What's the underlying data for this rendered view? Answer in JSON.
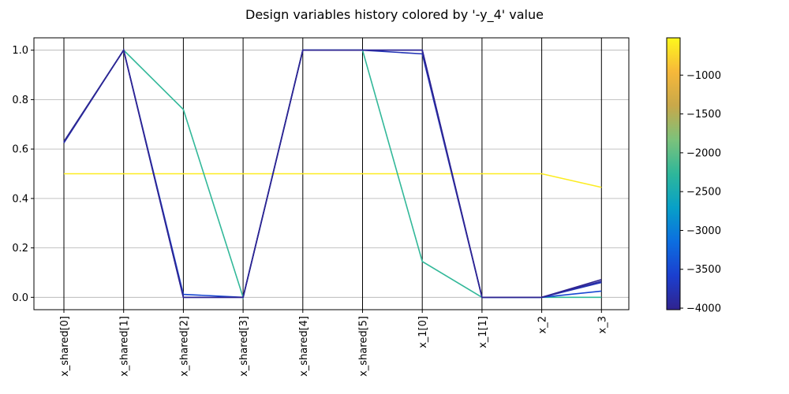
{
  "chart_data": {
    "type": "line",
    "title": "Design variables history colored by '-y_4' value",
    "categories": [
      "x_shared[0]",
      "x_shared[1]",
      "x_shared[2]",
      "x_shared[3]",
      "x_shared[4]",
      "x_shared[5]",
      "x_1[0]",
      "x_1[1]",
      "x_2",
      "x_3"
    ],
    "ylim": [
      -0.05,
      1.05
    ],
    "yticks": [
      0.0,
      0.2,
      0.4,
      0.6,
      0.8,
      1.0
    ],
    "ytick_labels": [
      "0.0",
      "0.2",
      "0.4",
      "0.6",
      "0.8",
      "1.0"
    ],
    "grid": "horizontal",
    "colorbar": {
      "label": "",
      "range": [
        -4020,
        -520
      ],
      "ticks": [
        -1000,
        -1500,
        -2000,
        -2500,
        -3000,
        -3500,
        -4000
      ],
      "tick_labels": [
        "−1000",
        "−1500",
        "−2000",
        "−2500",
        "−3000",
        "−3500",
        "−4000"
      ],
      "colormap": [
        "#30238e",
        "#1b3fcf",
        "#0c6ee0",
        "#07a0c8",
        "#2eb79a",
        "#7cc27b",
        "#c8a84a",
        "#f6b83a",
        "#fdf81c"
      ]
    },
    "series": [
      {
        "color_value": -600,
        "values": [
          0.5,
          0.5,
          0.5,
          0.5,
          0.5,
          0.5,
          0.5,
          0.5,
          0.5,
          0.445
        ]
      },
      {
        "color_value": -2250,
        "values": [
          0.63,
          1.0,
          0.76,
          0.0,
          1.0,
          1.0,
          0.145,
          0.0,
          0.0,
          0.0
        ]
      },
      {
        "color_value": -3500,
        "values": [
          0.628,
          1.0,
          0.012,
          0.0,
          1.0,
          1.0,
          1.0,
          0.0,
          0.0,
          0.025
        ]
      },
      {
        "color_value": -3750,
        "values": [
          0.625,
          1.0,
          0.0,
          0.0,
          1.0,
          1.0,
          0.985,
          0.0,
          0.0,
          0.06
        ]
      },
      {
        "color_value": -3900,
        "values": [
          0.628,
          1.0,
          0.0,
          0.0,
          1.0,
          1.0,
          1.0,
          0.0,
          0.0,
          0.065
        ]
      },
      {
        "color_value": -4000,
        "values": [
          0.63,
          1.0,
          0.0,
          0.0,
          1.0,
          1.0,
          1.0,
          0.0,
          0.0,
          0.072
        ]
      }
    ]
  }
}
